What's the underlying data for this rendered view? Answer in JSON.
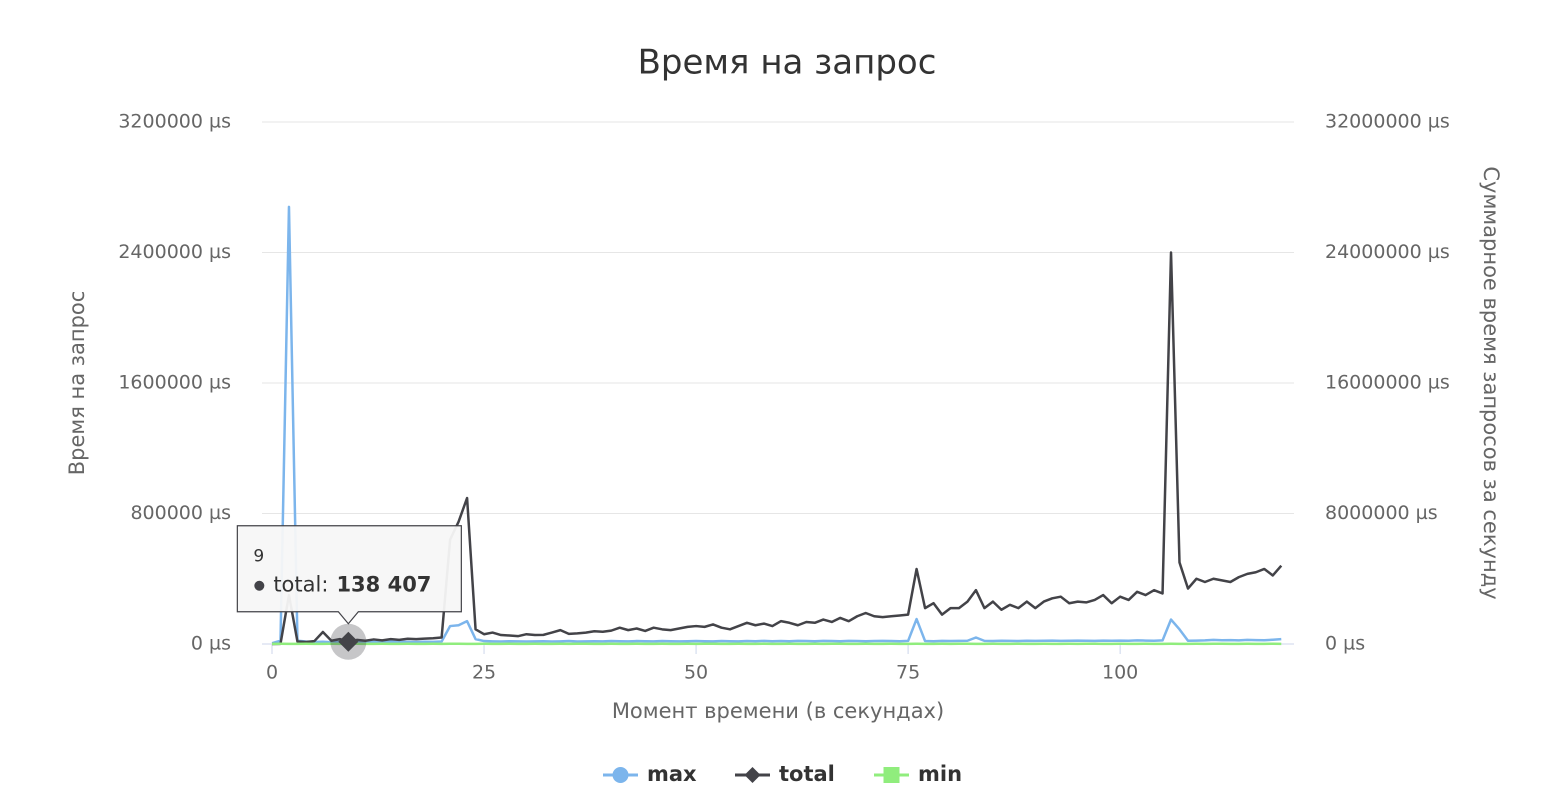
{
  "chart_data": {
    "type": "line",
    "title": "Время на запрос",
    "x_label": "Момент времени (в секундах)",
    "y_label": "Время на запрос",
    "y2_label": "Суммарное время запросов за секунду",
    "x": [
      0,
      1,
      2,
      3,
      4,
      5,
      6,
      7,
      8,
      9,
      10,
      11,
      12,
      13,
      14,
      15,
      16,
      17,
      18,
      19,
      20,
      21,
      22,
      23,
      24,
      25,
      26,
      27,
      28,
      29,
      30,
      31,
      32,
      33,
      34,
      35,
      36,
      37,
      38,
      39,
      40,
      41,
      42,
      43,
      44,
      45,
      46,
      47,
      48,
      49,
      50,
      51,
      52,
      53,
      54,
      55,
      56,
      57,
      58,
      59,
      60,
      61,
      62,
      63,
      64,
      65,
      66,
      67,
      68,
      69,
      70,
      71,
      72,
      73,
      74,
      75,
      76,
      77,
      78,
      79,
      80,
      81,
      82,
      83,
      84,
      85,
      86,
      87,
      88,
      89,
      90,
      91,
      92,
      93,
      94,
      95,
      96,
      97,
      98,
      99,
      100,
      101,
      102,
      103,
      104,
      105,
      106,
      107,
      108,
      109,
      110,
      111,
      112,
      113,
      114,
      115,
      116,
      117,
      118,
      119
    ],
    "xlim": [
      -1.18,
      120.5
    ],
    "xticks": [
      0,
      25,
      50,
      75,
      100
    ],
    "ylim": [
      0,
      3200000
    ],
    "yticks": [
      {
        "value": 0,
        "label": "0 µs"
      },
      {
        "value": 800000,
        "label": "800000 µs"
      },
      {
        "value": 1600000,
        "label": "1600000 µs"
      },
      {
        "value": 2400000,
        "label": "2400000 µs"
      },
      {
        "value": 3200000,
        "label": "3200000 µs"
      }
    ],
    "y2lim": [
      0,
      32000000
    ],
    "y2ticks": [
      {
        "value": 0,
        "label": "0 µs"
      },
      {
        "value": 8000000,
        "label": "8000000 µs"
      },
      {
        "value": 16000000,
        "label": "16000000 µs"
      },
      {
        "value": 24000000,
        "label": "24000000 µs"
      },
      {
        "value": 32000000,
        "label": "32000000 µs"
      }
    ],
    "grid": true,
    "legend": "bottom",
    "series": [
      {
        "name": "max",
        "color": "#7cb5ec",
        "marker": "circle",
        "axis": "y",
        "values": [
          5000,
          20000,
          2680000,
          20000,
          15000,
          12000,
          14000,
          11000,
          13000,
          12000,
          12000,
          11000,
          13000,
          12000,
          14000,
          12000,
          13000,
          12000,
          14000,
          13000,
          15000,
          110000,
          115000,
          140000,
          30000,
          18000,
          16000,
          15000,
          17000,
          16000,
          15000,
          16000,
          17000,
          15000,
          16000,
          18000,
          15000,
          16000,
          17000,
          16000,
          18000,
          17000,
          16000,
          18000,
          17000,
          16000,
          18000,
          17000,
          16000,
          17000,
          18000,
          17000,
          16000,
          18000,
          17000,
          16000,
          18000,
          17000,
          19000,
          17000,
          18000,
          17000,
          19000,
          18000,
          17000,
          19000,
          18000,
          17000,
          19000,
          18000,
          17000,
          18000,
          19000,
          18000,
          17000,
          19000,
          153000,
          18000,
          17000,
          19000,
          18000,
          19000,
          20000,
          40000,
          19000,
          18000,
          20000,
          19000,
          18000,
          20000,
          19000,
          20000,
          21000,
          19000,
          20000,
          21000,
          20000,
          19000,
          21000,
          20000,
          21000,
          20000,
          22000,
          21000,
          20000,
          22000,
          150000,
          90000,
          20000,
          21000,
          22000,
          25000,
          23000,
          24000,
          22000,
          25000,
          24000,
          23000,
          26000,
          30000
        ]
      },
      {
        "name": "total",
        "color": "#434348",
        "marker": "diamond",
        "axis": "y2",
        "values": [
          0,
          10000,
          3000000,
          150000,
          120000,
          180000,
          735000,
          200000,
          300000,
          138407,
          250000,
          200000,
          280000,
          220000,
          300000,
          250000,
          320000,
          300000,
          330000,
          350000,
          400000,
          6400000,
          7500000,
          8950000,
          900000,
          600000,
          700000,
          550000,
          520000,
          480000,
          600000,
          550000,
          560000,
          700000,
          850000,
          620000,
          650000,
          700000,
          780000,
          750000,
          820000,
          1000000,
          850000,
          950000,
          800000,
          1000000,
          900000,
          850000,
          950000,
          1050000,
          1100000,
          1050000,
          1200000,
          1000000,
          900000,
          1100000,
          1300000,
          1150000,
          1250000,
          1100000,
          1400000,
          1300000,
          1150000,
          1350000,
          1300000,
          1500000,
          1350000,
          1600000,
          1400000,
          1700000,
          1900000,
          1700000,
          1650000,
          1700000,
          1750000,
          1800000,
          4600000,
          2200000,
          2500000,
          1800000,
          2200000,
          2200000,
          2600000,
          3300000,
          2200000,
          2600000,
          2100000,
          2400000,
          2200000,
          2600000,
          2200000,
          2600000,
          2800000,
          2900000,
          2500000,
          2600000,
          2550000,
          2700000,
          3000000,
          2500000,
          2900000,
          2700000,
          3200000,
          3000000,
          3300000,
          3100000,
          24000000,
          5000000,
          3400000,
          4000000,
          3800000,
          4000000,
          3900000,
          3800000,
          4100000,
          4300000,
          4400000,
          4600000,
          4200000,
          4800000
        ]
      },
      {
        "name": "min",
        "color": "#90ed7d",
        "marker": "square",
        "axis": "y",
        "values": [
          1000,
          1200,
          1100,
          1000,
          1300,
          1100,
          1000,
          1200,
          1100,
          1000,
          1200,
          1100,
          1000,
          1300,
          1100,
          1000,
          1200,
          1100,
          1000,
          1200,
          1100,
          1300,
          1200,
          1100,
          1000,
          1200,
          1100,
          1000,
          1300,
          1100,
          1000,
          1200,
          1100,
          1000,
          1200,
          1100,
          1300,
          1200,
          1100,
          1000,
          1200,
          1100,
          1000,
          1300,
          1100,
          1000,
          1200,
          1100,
          1000,
          1200,
          1100,
          1300,
          1200,
          1100,
          1000,
          1200,
          1100,
          1000,
          1300,
          1100,
          1000,
          1200,
          1100,
          1000,
          1200,
          1100,
          1300,
          1200,
          1100,
          1000,
          1200,
          1100,
          1000,
          1300,
          1100,
          1000,
          1200,
          1100,
          1000,
          1200,
          1100,
          1300,
          1200,
          1100,
          1000,
          1200,
          1100,
          1000,
          1300,
          1100,
          1000,
          1200,
          1100,
          1000,
          1200,
          1100,
          1300,
          1200,
          1100,
          1000,
          1200,
          1100,
          1000,
          1300,
          1100,
          1000,
          1200,
          1100,
          1000,
          1200,
          1100,
          1300,
          1200,
          1100,
          1000,
          1200,
          1100,
          1000,
          1300,
          1100
        ]
      }
    ],
    "tooltip": {
      "x": 9,
      "series_label": "total:",
      "value_label": "138 407"
    }
  }
}
